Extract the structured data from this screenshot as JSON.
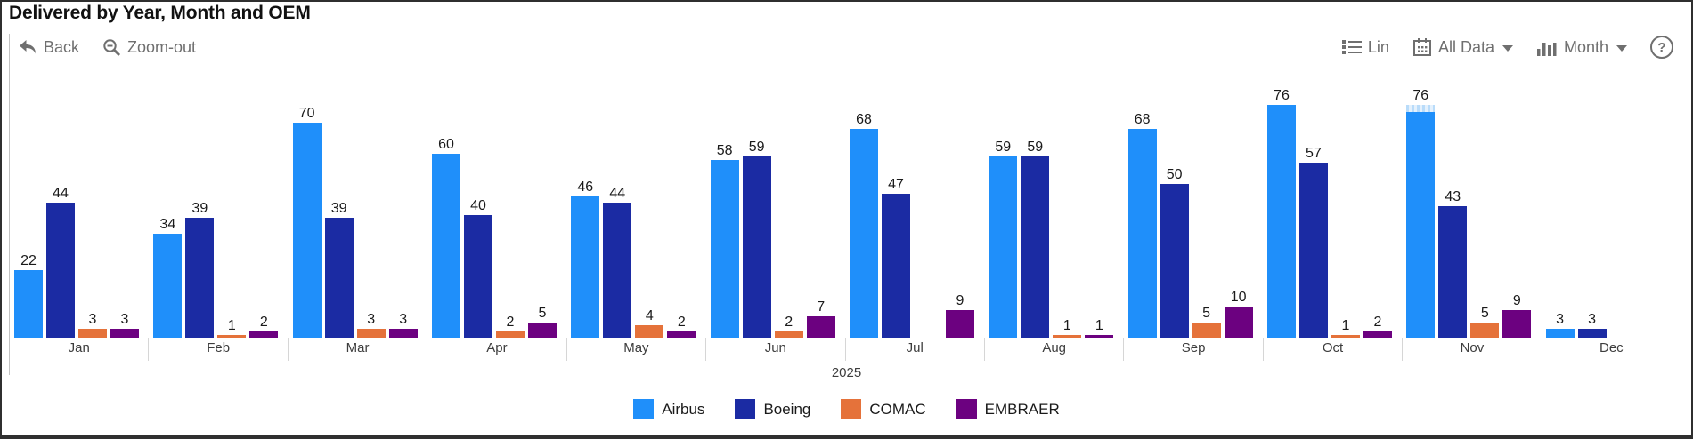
{
  "window": {
    "title": "Delivered by Year, Month and OEM"
  },
  "toolbar": {
    "back": "Back",
    "zoom_out": "Zoom-out",
    "lin": "Lin",
    "all_data": "All Data",
    "month": "Month",
    "help": "?"
  },
  "chart_data": {
    "type": "bar",
    "title": "Delivered by Year, Month and OEM",
    "categories": [
      "Jan",
      "Feb",
      "Mar",
      "Apr",
      "May",
      "Jun",
      "Jul",
      "Aug",
      "Sep",
      "Oct",
      "Nov",
      "Dec"
    ],
    "x_axis_year_label": "2025",
    "series": [
      {
        "name": "Airbus",
        "color": "#1F8FFA",
        "values": [
          22,
          34,
          70,
          60,
          46,
          58,
          68,
          59,
          68,
          76,
          76,
          3
        ]
      },
      {
        "name": "Boeing",
        "color": "#1B2BA3",
        "values": [
          44,
          39,
          39,
          40,
          44,
          59,
          47,
          59,
          50,
          57,
          43,
          3
        ]
      },
      {
        "name": "COMAC",
        "color": "#E5723A",
        "values": [
          3,
          1,
          3,
          2,
          4,
          2,
          0,
          1,
          5,
          1,
          5,
          0
        ]
      },
      {
        "name": "EMBRAER",
        "color": "#6C0180",
        "values": [
          3,
          2,
          3,
          5,
          2,
          7,
          9,
          1,
          10,
          2,
          9,
          0
        ]
      }
    ],
    "ylim": [
      0,
      80
    ],
    "grid": false,
    "bar_value_labels": true,
    "legend_position": "bottom",
    "partial_data_indicator": {
      "category": "Nov",
      "series": "Airbus"
    }
  }
}
